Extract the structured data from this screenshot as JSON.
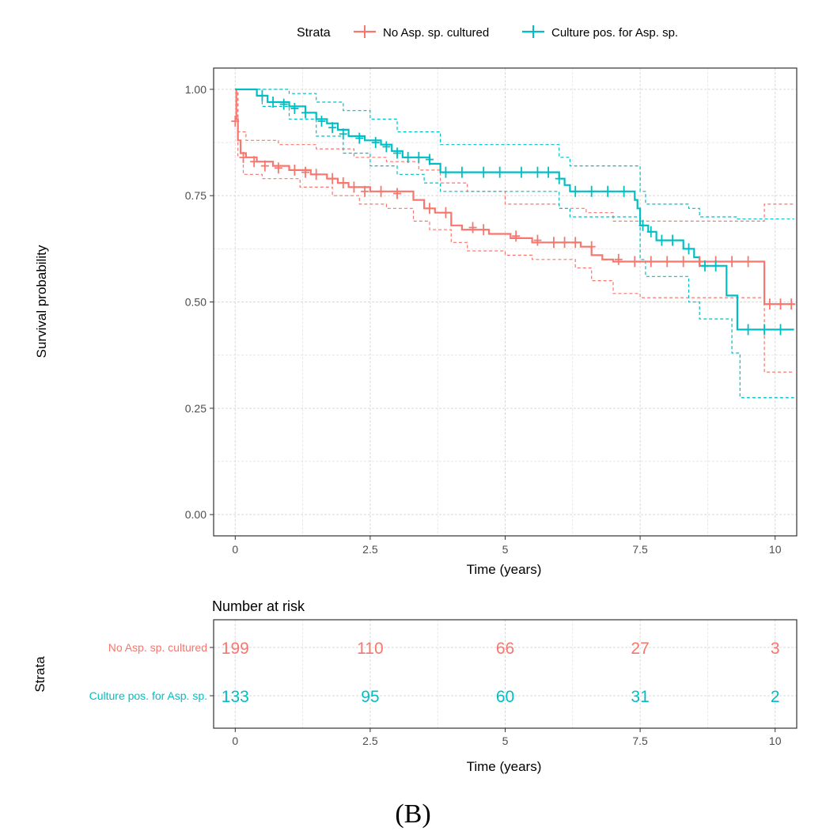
{
  "panel_label": "(B)",
  "colors": {
    "no_asp": "#F8766D",
    "culture_pos": "#00BFC4",
    "grid": "#d4d4d4",
    "axis_text": "#4d4d4d",
    "border": "#333333"
  },
  "legend": {
    "title": "Strata",
    "entries": [
      {
        "label": "No Asp. sp. cultured",
        "color": "#F8766D"
      },
      {
        "label": "Culture pos. for Asp. sp.",
        "color": "#00BFC4"
      }
    ]
  },
  "chart_data": [
    {
      "type": "line",
      "subtype": "kaplan-meier",
      "title": "",
      "xlabel": "Time (years)",
      "ylabel": "Survival probability",
      "xlim": [
        -0.4,
        10.4
      ],
      "ylim": [
        -0.05,
        1.05
      ],
      "x_ticks": [
        0,
        2.5,
        5,
        7.5,
        10
      ],
      "x_tick_labels": [
        "0",
        "2.5",
        "5",
        "7.5",
        "10"
      ],
      "y_ticks": [
        0,
        0.25,
        0.5,
        0.75,
        1.0
      ],
      "y_tick_labels": [
        "0.00",
        "0.25",
        "0.50",
        "0.75",
        "1.00"
      ],
      "grid": true,
      "series": [
        {
          "name": "No Asp. sp. cultured",
          "color": "#F8766D",
          "steps": [
            [
              0,
              1.0
            ],
            [
              0.02,
              0.93
            ],
            [
              0.05,
              0.88
            ],
            [
              0.1,
              0.85
            ],
            [
              0.2,
              0.84
            ],
            [
              0.4,
              0.83
            ],
            [
              0.7,
              0.82
            ],
            [
              1.0,
              0.81
            ],
            [
              1.4,
              0.8
            ],
            [
              1.7,
              0.79
            ],
            [
              1.9,
              0.78
            ],
            [
              2.1,
              0.77
            ],
            [
              2.5,
              0.76
            ],
            [
              3.3,
              0.74
            ],
            [
              3.5,
              0.72
            ],
            [
              3.7,
              0.71
            ],
            [
              4.0,
              0.68
            ],
            [
              4.2,
              0.67
            ],
            [
              4.7,
              0.66
            ],
            [
              5.1,
              0.65
            ],
            [
              5.5,
              0.64
            ],
            [
              6.4,
              0.63
            ],
            [
              6.6,
              0.61
            ],
            [
              6.8,
              0.6
            ],
            [
              7.0,
              0.595
            ],
            [
              9.8,
              0.495
            ],
            [
              10.35,
              0.495
            ]
          ],
          "lower": [
            [
              0,
              1.0
            ],
            [
              0.05,
              0.84
            ],
            [
              0.15,
              0.8
            ],
            [
              0.5,
              0.79
            ],
            [
              1.2,
              0.77
            ],
            [
              1.8,
              0.75
            ],
            [
              2.3,
              0.73
            ],
            [
              2.8,
              0.72
            ],
            [
              3.3,
              0.69
            ],
            [
              3.6,
              0.67
            ],
            [
              4.0,
              0.64
            ],
            [
              4.3,
              0.62
            ],
            [
              5.0,
              0.61
            ],
            [
              5.5,
              0.6
            ],
            [
              6.3,
              0.58
            ],
            [
              6.6,
              0.55
            ],
            [
              7.0,
              0.52
            ],
            [
              7.5,
              0.51
            ],
            [
              9.8,
              0.335
            ],
            [
              10.35,
              0.335
            ]
          ],
          "upper": [
            [
              0,
              1.0
            ],
            [
              0.05,
              0.9
            ],
            [
              0.2,
              0.88
            ],
            [
              0.8,
              0.87
            ],
            [
              1.5,
              0.86
            ],
            [
              2.2,
              0.84
            ],
            [
              2.8,
              0.83
            ],
            [
              3.4,
              0.81
            ],
            [
              3.8,
              0.78
            ],
            [
              4.3,
              0.76
            ],
            [
              5.0,
              0.73
            ],
            [
              6.0,
              0.72
            ],
            [
              6.5,
              0.71
            ],
            [
              7.0,
              0.69
            ],
            [
              7.5,
              0.69
            ],
            [
              9.8,
              0.73
            ],
            [
              10.35,
              0.73
            ]
          ],
          "censor_marks": [
            [
              0,
              0.925
            ],
            [
              0.15,
              0.84
            ],
            [
              0.35,
              0.83
            ],
            [
              0.55,
              0.82
            ],
            [
              0.8,
              0.815
            ],
            [
              1.1,
              0.81
            ],
            [
              1.3,
              0.805
            ],
            [
              1.5,
              0.8
            ],
            [
              1.8,
              0.79
            ],
            [
              2.0,
              0.78
            ],
            [
              2.2,
              0.77
            ],
            [
              2.4,
              0.76
            ],
            [
              2.7,
              0.76
            ],
            [
              3.0,
              0.755
            ],
            [
              3.6,
              0.72
            ],
            [
              3.9,
              0.71
            ],
            [
              4.4,
              0.675
            ],
            [
              4.6,
              0.67
            ],
            [
              5.2,
              0.655
            ],
            [
              5.6,
              0.645
            ],
            [
              5.9,
              0.64
            ],
            [
              6.1,
              0.64
            ],
            [
              6.3,
              0.64
            ],
            [
              6.6,
              0.63
            ],
            [
              7.1,
              0.6
            ],
            [
              7.4,
              0.595
            ],
            [
              7.7,
              0.595
            ],
            [
              8.0,
              0.595
            ],
            [
              8.3,
              0.595
            ],
            [
              8.6,
              0.595
            ],
            [
              8.9,
              0.595
            ],
            [
              9.2,
              0.595
            ],
            [
              9.5,
              0.595
            ],
            [
              9.9,
              0.495
            ],
            [
              10.1,
              0.495
            ],
            [
              10.3,
              0.495
            ]
          ]
        },
        {
          "name": "Culture pos. for Asp. sp.",
          "color": "#00BFC4",
          "steps": [
            [
              0,
              1.0
            ],
            [
              0.4,
              0.985
            ],
            [
              0.6,
              0.97
            ],
            [
              1.0,
              0.96
            ],
            [
              1.3,
              0.945
            ],
            [
              1.5,
              0.93
            ],
            [
              1.7,
              0.92
            ],
            [
              1.9,
              0.905
            ],
            [
              2.1,
              0.89
            ],
            [
              2.4,
              0.88
            ],
            [
              2.7,
              0.87
            ],
            [
              2.9,
              0.855
            ],
            [
              3.1,
              0.84
            ],
            [
              3.6,
              0.825
            ],
            [
              3.8,
              0.805
            ],
            [
              6.0,
              0.79
            ],
            [
              6.1,
              0.775
            ],
            [
              6.2,
              0.76
            ],
            [
              7.4,
              0.74
            ],
            [
              7.45,
              0.72
            ],
            [
              7.5,
              0.68
            ],
            [
              7.65,
              0.665
            ],
            [
              7.8,
              0.645
            ],
            [
              8.3,
              0.625
            ],
            [
              8.5,
              0.605
            ],
            [
              8.6,
              0.585
            ],
            [
              9.1,
              0.515
            ],
            [
              9.3,
              0.435
            ],
            [
              10.35,
              0.435
            ]
          ],
          "lower": [
            [
              0,
              1.0
            ],
            [
              0.5,
              0.96
            ],
            [
              1.0,
              0.93
            ],
            [
              1.5,
              0.89
            ],
            [
              2.0,
              0.85
            ],
            [
              2.5,
              0.82
            ],
            [
              3.0,
              0.8
            ],
            [
              3.5,
              0.78
            ],
            [
              3.8,
              0.76
            ],
            [
              6.0,
              0.72
            ],
            [
              6.2,
              0.7
            ],
            [
              7.5,
              0.6
            ],
            [
              7.6,
              0.56
            ],
            [
              8.4,
              0.5
            ],
            [
              8.6,
              0.46
            ],
            [
              9.2,
              0.38
            ],
            [
              9.35,
              0.275
            ],
            [
              10.35,
              0.275
            ]
          ],
          "upper": [
            [
              0,
              1.0
            ],
            [
              0.4,
              1.0
            ],
            [
              1.0,
              0.99
            ],
            [
              1.5,
              0.97
            ],
            [
              2.0,
              0.95
            ],
            [
              2.5,
              0.93
            ],
            [
              3.0,
              0.9
            ],
            [
              3.8,
              0.87
            ],
            [
              6.0,
              0.84
            ],
            [
              6.2,
              0.82
            ],
            [
              7.5,
              0.76
            ],
            [
              7.6,
              0.73
            ],
            [
              8.4,
              0.72
            ],
            [
              8.6,
              0.7
            ],
            [
              9.3,
              0.695
            ],
            [
              10.35,
              0.695
            ]
          ],
          "censor_marks": [
            [
              0.5,
              0.985
            ],
            [
              0.7,
              0.97
            ],
            [
              0.9,
              0.965
            ],
            [
              1.1,
              0.955
            ],
            [
              1.3,
              0.945
            ],
            [
              1.6,
              0.925
            ],
            [
              1.8,
              0.91
            ],
            [
              2.0,
              0.895
            ],
            [
              2.3,
              0.885
            ],
            [
              2.6,
              0.875
            ],
            [
              2.8,
              0.865
            ],
            [
              3.0,
              0.85
            ],
            [
              3.2,
              0.84
            ],
            [
              3.4,
              0.84
            ],
            [
              3.6,
              0.835
            ],
            [
              3.9,
              0.805
            ],
            [
              4.2,
              0.805
            ],
            [
              4.6,
              0.805
            ],
            [
              4.9,
              0.805
            ],
            [
              5.3,
              0.805
            ],
            [
              5.6,
              0.805
            ],
            [
              5.8,
              0.805
            ],
            [
              6.0,
              0.79
            ],
            [
              6.3,
              0.76
            ],
            [
              6.6,
              0.76
            ],
            [
              6.9,
              0.76
            ],
            [
              7.2,
              0.76
            ],
            [
              7.55,
              0.68
            ],
            [
              7.7,
              0.665
            ],
            [
              7.9,
              0.645
            ],
            [
              8.1,
              0.645
            ],
            [
              8.4,
              0.625
            ],
            [
              8.7,
              0.585
            ],
            [
              8.9,
              0.585
            ],
            [
              9.5,
              0.435
            ],
            [
              9.8,
              0.435
            ],
            [
              10.1,
              0.435
            ]
          ]
        }
      ]
    },
    {
      "type": "table",
      "title": "Number at risk",
      "xlabel": "Time (years)",
      "ylabel": "Strata",
      "xlim": [
        -0.4,
        10.4
      ],
      "x_ticks": [
        0,
        2.5,
        5,
        7.5,
        10
      ],
      "x_tick_labels": [
        "0",
        "2.5",
        "5",
        "7.5",
        "10"
      ],
      "rows": [
        {
          "name": "No Asp. sp. cultured",
          "color": "#F8766D",
          "values": [
            199,
            110,
            66,
            27,
            3
          ]
        },
        {
          "name": "Culture pos. for Asp. sp.",
          "color": "#00BFC4",
          "values": [
            133,
            95,
            60,
            31,
            2
          ]
        }
      ]
    }
  ]
}
